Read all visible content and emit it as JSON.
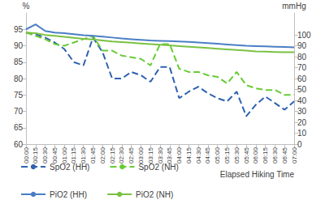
{
  "chart_data": {
    "type": "line",
    "categories": [
      "00:00",
      "00:15",
      "00:30",
      "00:45",
      "01:00",
      "01:15",
      "01:30",
      "01:45",
      "02:00",
      "02:15",
      "02:30",
      "02:45",
      "03:00",
      "03:15",
      "03:30",
      "03:45",
      "04:00",
      "04:15",
      "04:30",
      "04:45",
      "05:00",
      "05:15",
      "05:30",
      "05:45",
      "06:00",
      "06:15",
      "06:30",
      "06:45",
      "07:00"
    ],
    "x_label": "Elapsed Hiking Time",
    "y_label": "%",
    "y2_label": "mmHg",
    "ylim": [
      60,
      100
    ],
    "yticks": [
      60,
      65,
      70,
      75,
      80,
      85,
      90,
      95
    ],
    "y2lim": [
      0,
      120
    ],
    "y2ticks": [
      0,
      10,
      20,
      30,
      40,
      50,
      60,
      70,
      80,
      90,
      100
    ],
    "grid": false,
    "legend": "bottom",
    "marker": "none",
    "series": [
      {
        "name": "SpO2 (HH)",
        "color": "#2e62b0",
        "line_style": "dashed",
        "values": [
          94,
          93.5,
          92.5,
          91,
          89,
          85,
          84,
          92.5,
          88,
          80,
          80,
          82,
          81,
          79,
          83.5,
          83.5,
          74,
          76,
          77.5,
          75.5,
          74,
          73,
          76,
          68.5,
          72,
          74.5,
          72.5,
          70.5,
          73
        ]
      },
      {
        "name": "SpO2 (NH)",
        "color": "#66cc33",
        "line_style": "dashed",
        "values": [
          94,
          93,
          92,
          90.5,
          90,
          91,
          92,
          93,
          88.5,
          88.5,
          87,
          86.5,
          86,
          84,
          90.5,
          90.5,
          83,
          82,
          82,
          81,
          80.5,
          78.5,
          82,
          78,
          77,
          76.5,
          76.5,
          75,
          75
        ]
      },
      {
        "name": "PiO2 (HH)",
        "color": "#4a7ec4",
        "line_style": "solid",
        "axis": "y2",
        "values": [
          105,
          109.5,
          103.5,
          102,
          101.4,
          100.5,
          99.6,
          99,
          98.4,
          97.5,
          96.6,
          96,
          95.4,
          94.8,
          94.5,
          94.2,
          93.9,
          93.6,
          93,
          92.4,
          91.8,
          91.2,
          90.6,
          90,
          89.7,
          89.4,
          89.1,
          88.8,
          88.5
        ]
      },
      {
        "name": "PiO2 (NH)",
        "color": "#7ac143",
        "line_style": "solid",
        "axis": "y2",
        "values": [
          102,
          101.4,
          99.9,
          99,
          98.1,
          97.2,
          96.3,
          95.7,
          94.8,
          93.9,
          93.3,
          92.7,
          92.1,
          91.5,
          90.9,
          90.3,
          89.7,
          89.1,
          88.5,
          87.9,
          87.3,
          86.7,
          86.1,
          85.5,
          84.9,
          84.6,
          84.3,
          84,
          84
        ]
      }
    ]
  }
}
